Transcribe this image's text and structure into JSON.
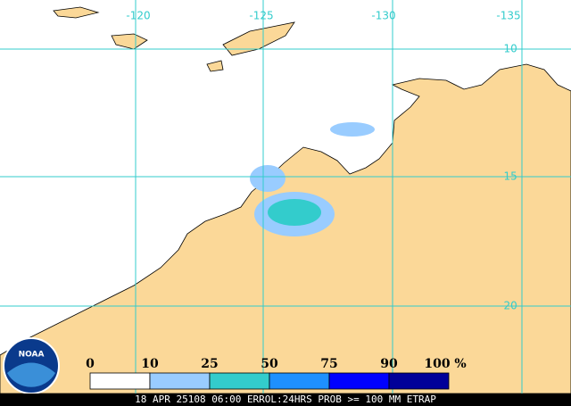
{
  "map": {
    "lon_labels": [
      "-120",
      "-125",
      "-130",
      "-135"
    ],
    "lat_labels": [
      "-10",
      "-15",
      "-20"
    ],
    "legend": {
      "ticks": [
        "0",
        "10",
        "25",
        "50",
        "75",
        "90",
        "100"
      ],
      "unit": "%",
      "colors": [
        "#ffffff",
        "#99ccff",
        "#33cccc",
        "#1e90ff",
        "#0000ff",
        "#000099"
      ]
    },
    "logo": "NOAA",
    "caption": "18 APR 25108 06:00 ERROL:24HRS PROB >= 100 MM ETRAP"
  }
}
